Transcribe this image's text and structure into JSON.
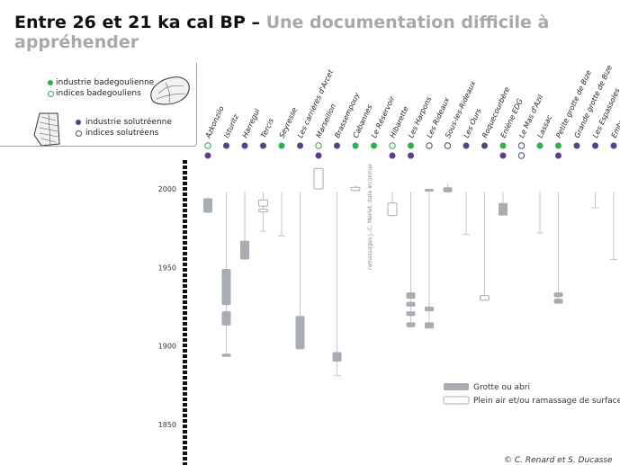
{
  "title": {
    "main": "Entre 26 et 21 ka cal BP –",
    "sub": "Une documentation difficile à appréhender"
  },
  "legend": {
    "items": [
      {
        "label": "industrie badegoulienne",
        "marker": "filled",
        "color": "#2bb24c"
      },
      {
        "label": "indices badegouliens",
        "marker": "open",
        "color": "#2bb24c"
      },
      {
        "label": "industrie solutréenne",
        "marker": "filled",
        "color": "#5b3f8c"
      },
      {
        "label": "indices solutréens",
        "marker": "open",
        "color": "#5b3f8c"
      }
    ]
  },
  "chart_data": {
    "type": "diagram",
    "axis": {
      "range": [
        1830,
        2020
      ],
      "ticks": [
        2000,
        1950,
        1900,
        1850
      ]
    },
    "colors": {
      "badegoulien": "#2bb24c",
      "solutreen": "#5b3f8c",
      "grotte": "#a7adb3",
      "stem": "#c2c7cc"
    },
    "sites": [
      {
        "name": "Azkonzilo",
        "marker": "open",
        "culture": "badegoulien",
        "dot": "solutreen",
        "stem": [
          1995,
          1985
        ],
        "bars": [
          {
            "from": 1994,
            "to": 1985,
            "kind": "grotte"
          }
        ]
      },
      {
        "name": "Isturitz",
        "marker": "filled",
        "culture": "solutreen",
        "stem": [
          1998,
          1894
        ],
        "bars": [
          {
            "from": 1949,
            "to": 1926,
            "kind": "grotte"
          },
          {
            "from": 1922,
            "to": 1913,
            "kind": "grotte"
          },
          {
            "from": 1895,
            "to": 1893,
            "kind": "grotte"
          }
        ]
      },
      {
        "name": "Harregui",
        "marker": "filled",
        "culture": "solutreen",
        "stem": [
          1998,
          1956
        ],
        "bars": [
          {
            "from": 1967,
            "to": 1955,
            "kind": "grotte"
          }
        ]
      },
      {
        "name": "Tercis",
        "marker": "filled",
        "culture": "solutreen",
        "stem": [
          1998,
          1973
        ],
        "bars": [
          {
            "from": 1993,
            "to": 1989,
            "kind": "plein_air"
          },
          {
            "from": 1987,
            "to": 1986,
            "kind": "plein_air"
          }
        ]
      },
      {
        "name": "Seyresse",
        "marker": "filled",
        "culture": "badegoulien",
        "stem": [
          1998,
          1970
        ],
        "bars": []
      },
      {
        "name": "Les carrières d'Arcet",
        "marker": "filled",
        "culture": "solutreen",
        "stem": [
          1998,
          1898
        ],
        "bars": [
          {
            "from": 1919,
            "to": 1898,
            "kind": "grotte"
          }
        ]
      },
      {
        "name": "Marseillon",
        "marker": "open",
        "culture": "badegoulien",
        "dot": "solutreen",
        "stem": [
          2013,
          2000
        ],
        "bars": [
          {
            "from": 2013,
            "to": 2000,
            "kind": "plein_air"
          }
        ]
      },
      {
        "name": "Brassempouy",
        "marker": "filled",
        "culture": "solutreen",
        "stem": [
          1998,
          1881
        ],
        "bars": [
          {
            "from": 1896,
            "to": 1890,
            "kind": "grotte"
          }
        ]
      },
      {
        "name": "Cabannes",
        "marker": "filled",
        "culture": "badegoulien",
        "stem": [
          2002,
          1999
        ],
        "bars": [
          {
            "from": 2001,
            "to": 1999,
            "kind": "plein_air"
          }
        ]
      },
      {
        "name": "Le Réservoir",
        "marker": "filled",
        "culture": "badegoulien",
        "stem": [],
        "bars": [],
        "note": "ramassages J.-C. Merlet, date inconnue"
      },
      {
        "name": "Hibarette",
        "marker": "open",
        "culture": "badegoulien",
        "dot": "solutreen",
        "stem": [
          1998,
          1983
        ],
        "bars": [
          {
            "from": 1991,
            "to": 1983,
            "kind": "plein_air"
          }
        ]
      },
      {
        "name": "Les Harpons",
        "marker": "filled",
        "culture": "badegoulien",
        "dot": "solutreen",
        "stem": [
          1998,
          1912
        ],
        "bars": [
          {
            "from": 1934,
            "to": 1930,
            "kind": "grotte"
          },
          {
            "from": 1928,
            "to": 1925,
            "kind": "grotte"
          },
          {
            "from": 1922,
            "to": 1919,
            "kind": "grotte"
          },
          {
            "from": 1915,
            "to": 1912,
            "kind": "grotte"
          }
        ]
      },
      {
        "name": "Les Rideaux",
        "marker": "open",
        "culture": "solutreen",
        "stem": [
          1998,
          1912
        ],
        "bars": [
          {
            "from": 2000,
            "to": 2000,
            "kind": "grotte"
          },
          {
            "from": 1925,
            "to": 1922,
            "kind": "grotte"
          },
          {
            "from": 1915,
            "to": 1911,
            "kind": "grotte"
          }
        ]
      },
      {
        "name": "Sous-les-Rideaux",
        "marker": "open",
        "culture": "solutreen",
        "stem": [
          2003,
          1998
        ],
        "bars": [
          {
            "from": 2001,
            "to": 1998,
            "kind": "grotte"
          }
        ]
      },
      {
        "name": "Les Ours",
        "marker": "filled",
        "culture": "solutreen",
        "stem": [
          1998,
          1971
        ],
        "bars": []
      },
      {
        "name": "Roquecourbère",
        "marker": "filled",
        "culture": "solutreen",
        "stem": [
          1998,
          1930
        ],
        "bars": [
          {
            "from": 1932,
            "to": 1929,
            "kind": "plein_air"
          }
        ]
      },
      {
        "name": "Enlène EDG",
        "marker": "filled",
        "culture": "badegoulien",
        "dot": "solutreen",
        "stem": [
          1998,
          1985
        ],
        "bars": [
          {
            "from": 1991,
            "to": 1983,
            "kind": "grotte"
          }
        ]
      },
      {
        "name": "Le Mas d'Azil",
        "marker": "open",
        "culture": "solutreen",
        "dot": "open_solutreen",
        "stem": [],
        "bars": []
      },
      {
        "name": "Lassac",
        "marker": "filled",
        "culture": "badegoulien",
        "stem": [
          1998,
          1972
        ],
        "bars": []
      },
      {
        "name": "Petite grotte de Bize",
        "marker": "filled",
        "culture": "badegoulien",
        "dot": "solutreen",
        "stem": [
          1998,
          1927
        ],
        "bars": [
          {
            "from": 1934,
            "to": 1931,
            "kind": "grotte"
          },
          {
            "from": 1930,
            "to": 1927,
            "kind": "grotte"
          }
        ]
      },
      {
        "name": "Grande grotte de Bize",
        "marker": "filled",
        "culture": "solutreen",
        "stem": [],
        "bars": []
      },
      {
        "name": "Les Espassoles",
        "marker": "filled",
        "culture": "solutreen",
        "stem": [
          1998,
          1988
        ],
        "bars": []
      },
      {
        "name": "Embulla",
        "marker": "filled",
        "culture": "solutreen",
        "stem": [
          1998,
          1955
        ],
        "bars": []
      }
    ],
    "legend": [
      {
        "label": "Grotte ou abri",
        "kind": "grotte"
      },
      {
        "label": "Plein air et/ou ramassage de surface",
        "kind": "plein_air"
      }
    ]
  },
  "copyright": "© C. Renard et S. Ducasse"
}
